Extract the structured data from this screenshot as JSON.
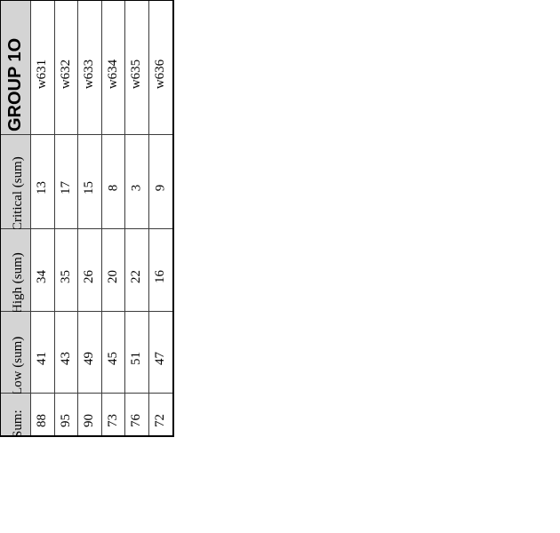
{
  "table": {
    "title_cell": "GROUP 1O",
    "columns": [
      "w631",
      "w632",
      "w633",
      "w634",
      "w635",
      "w636"
    ],
    "rows": [
      {
        "label": "Critical (sum)",
        "values": [
          "13",
          "17",
          "15",
          "8",
          "3",
          "9"
        ]
      },
      {
        "label": "High (sum)",
        "values": [
          "34",
          "35",
          "26",
          "20",
          "22",
          "16"
        ]
      },
      {
        "label": "Low (sum)",
        "values": [
          "41",
          "43",
          "49",
          "45",
          "51",
          "47"
        ]
      },
      {
        "label": "Sum:",
        "values": [
          "88",
          "95",
          "90",
          "73",
          "76",
          "72"
        ]
      }
    ],
    "colors": {
      "header_bg": "#d4d4d4",
      "grid_line": "#3c3c3c",
      "outer_border": "#000000",
      "text": "#000000",
      "page_bg": "#ffffff"
    }
  }
}
